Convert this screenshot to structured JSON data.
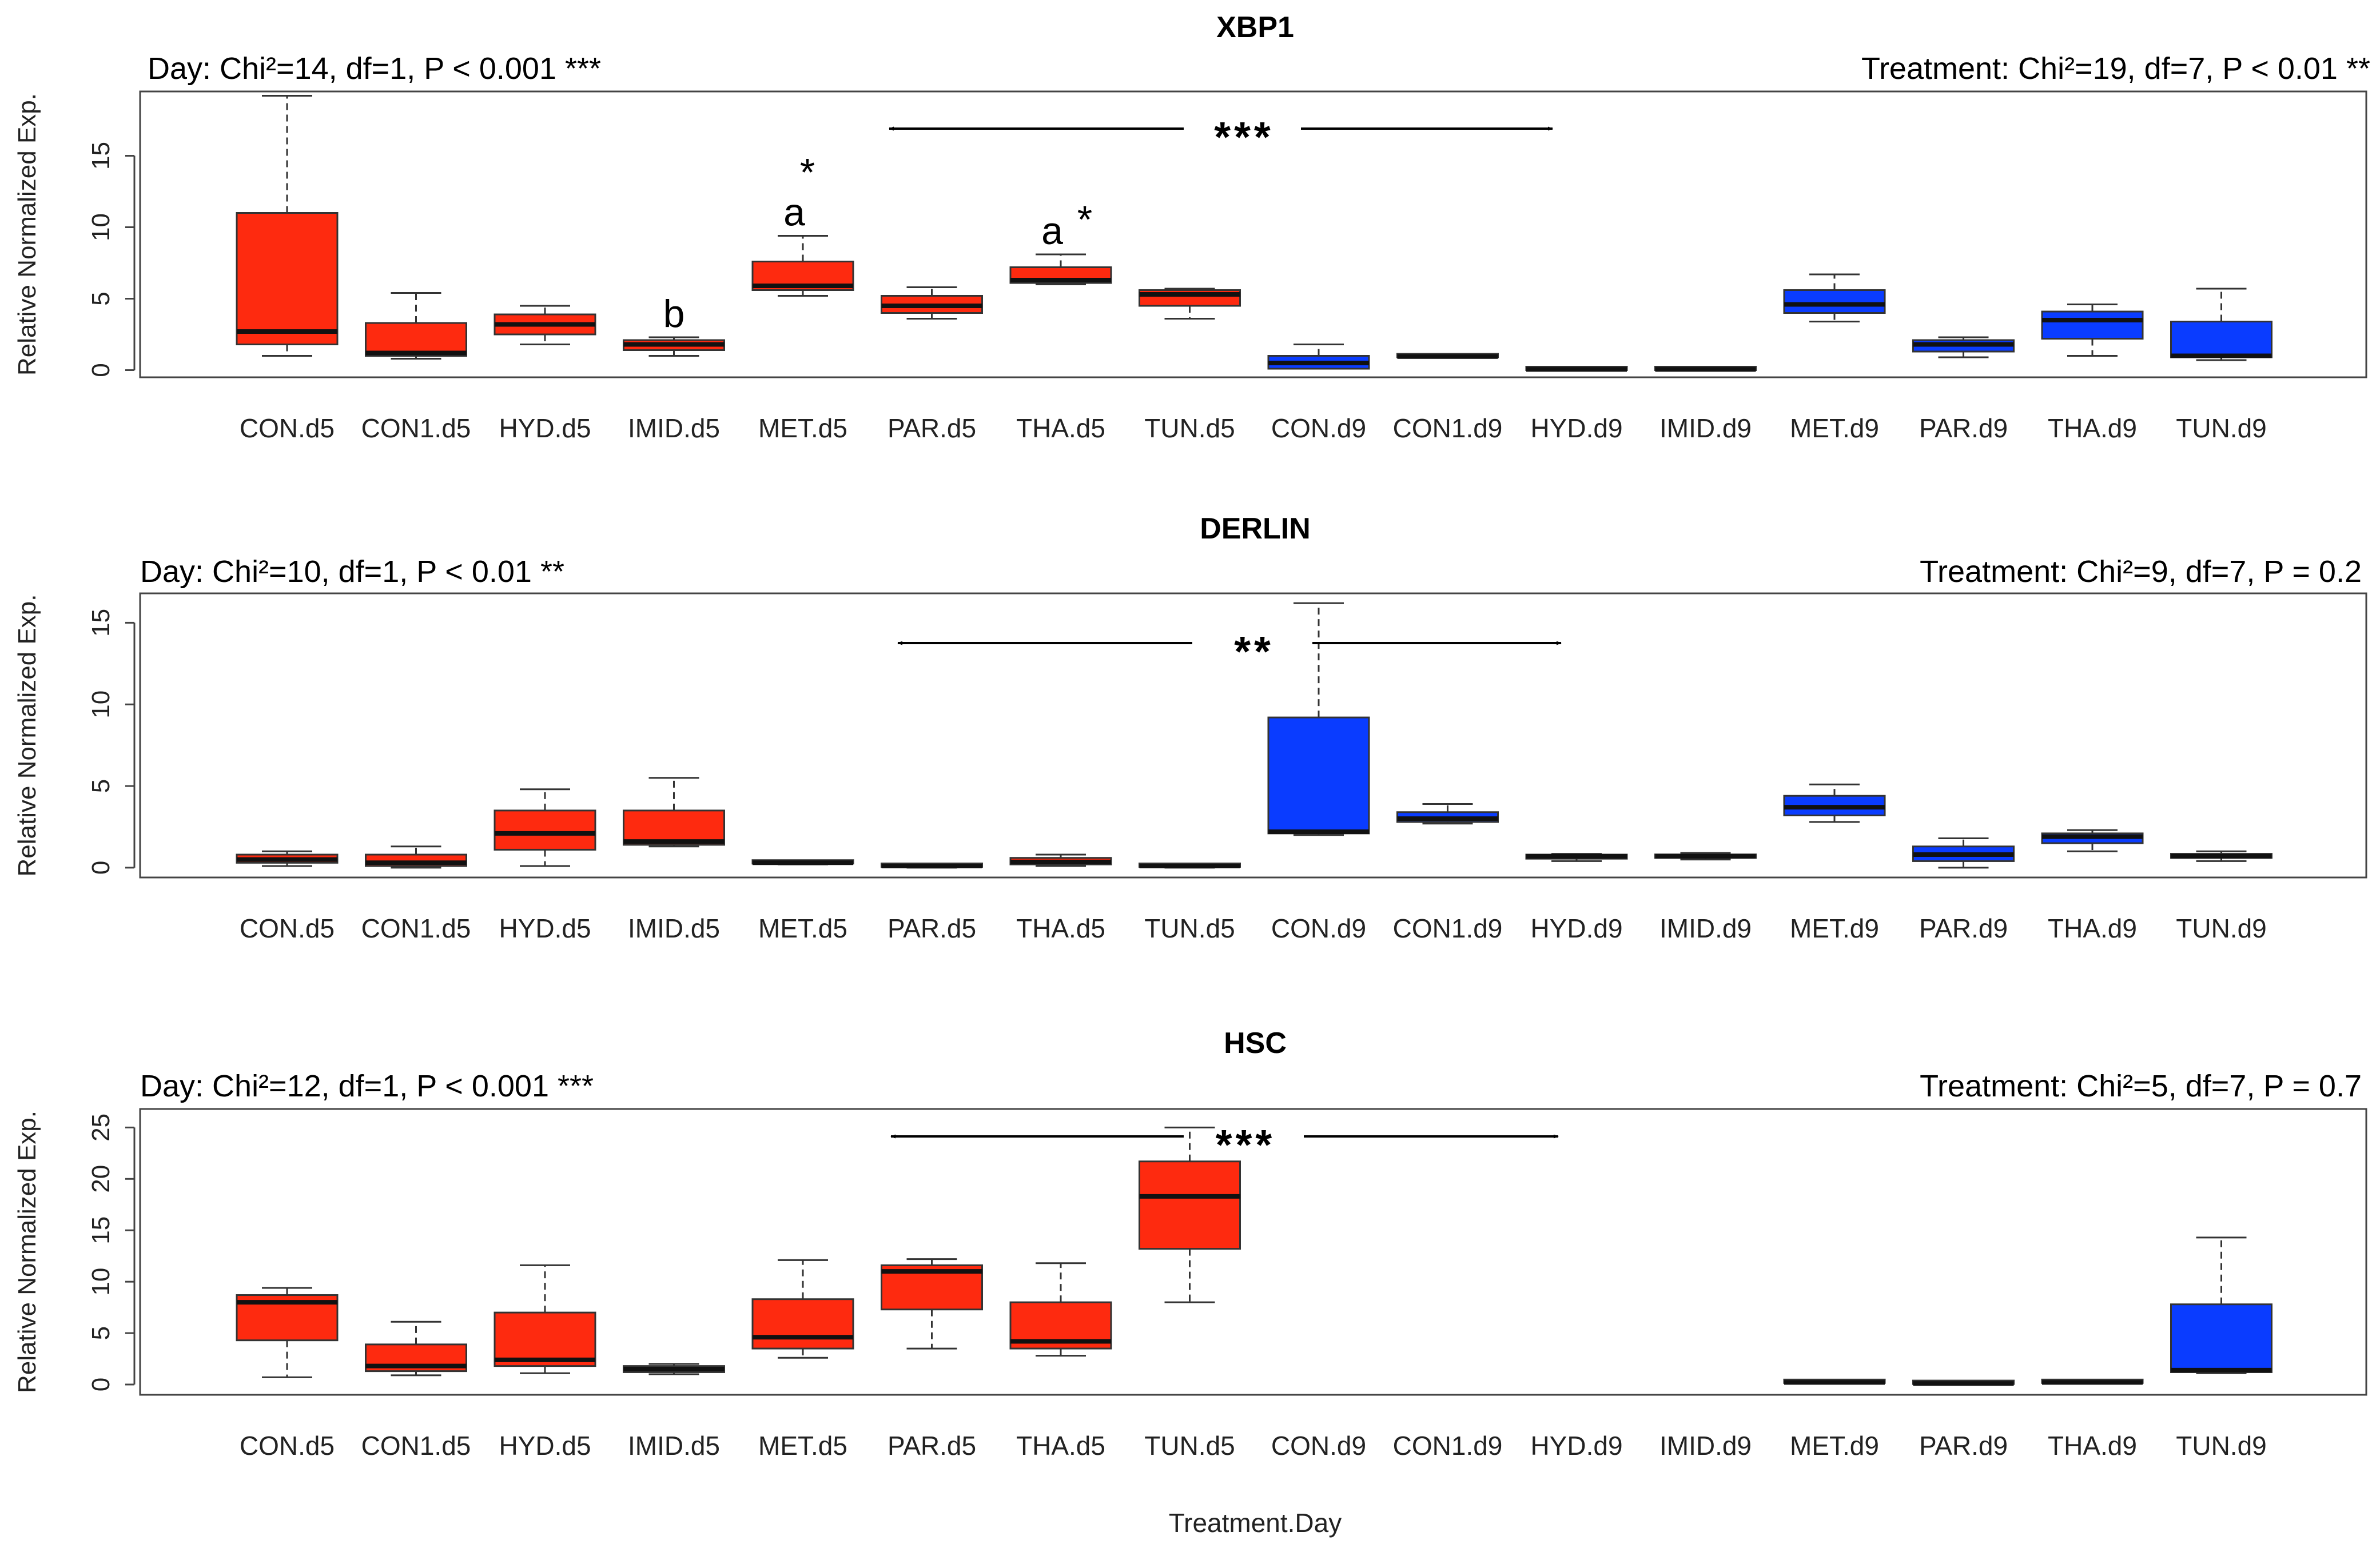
{
  "chart_data": [
    {
      "type": "box",
      "title": "XBP1",
      "stat_left": "Day: Chi²=14, df=1, P < 0.001 ***",
      "stat_right": "Treatment: Chi²=19, df=7, P < 0.01 **",
      "ylabel": "Relative Normalized Exp.",
      "xlabel": "",
      "ylim": [
        -0.5,
        19.5
      ],
      "yticks": [
        0,
        5,
        10,
        15
      ],
      "arrow_label": "***",
      "categories": [
        "CON.d5",
        "CON1.d5",
        "HYD.d5",
        "IMID.d5",
        "MET.d5",
        "PAR.d5",
        "THA.d5",
        "TUN.d5",
        "CON.d9",
        "CON1.d9",
        "HYD.d9",
        "IMID.d9",
        "MET.d9",
        "PAR.d9",
        "THA.d9",
        "TUN.d9"
      ],
      "boxes": [
        {
          "min": 1.0,
          "q1": 1.8,
          "median": 2.7,
          "q3": 11.0,
          "max": 19.2,
          "color": "red"
        },
        {
          "min": 0.8,
          "q1": 1.0,
          "median": 1.2,
          "q3": 3.3,
          "max": 5.4,
          "color": "red"
        },
        {
          "min": 1.8,
          "q1": 2.5,
          "median": 3.2,
          "q3": 3.9,
          "max": 4.5,
          "color": "red"
        },
        {
          "min": 1.0,
          "q1": 1.4,
          "median": 1.8,
          "q3": 2.1,
          "max": 2.3,
          "color": "red"
        },
        {
          "min": 5.2,
          "q1": 5.6,
          "median": 5.9,
          "q3": 7.6,
          "max": 9.4,
          "color": "red"
        },
        {
          "min": 3.6,
          "q1": 4.0,
          "median": 4.5,
          "q3": 5.2,
          "max": 5.8,
          "color": "red"
        },
        {
          "min": 6.0,
          "q1": 6.1,
          "median": 6.3,
          "q3": 7.2,
          "max": 8.1,
          "color": "red"
        },
        {
          "min": 3.6,
          "q1": 4.5,
          "median": 5.3,
          "q3": 5.6,
          "max": 5.7,
          "color": "red"
        },
        {
          "min": 0.1,
          "q1": 0.1,
          "median": 0.5,
          "q3": 1.0,
          "max": 1.8,
          "color": "blue"
        },
        {
          "min": 0.9,
          "q1": 0.9,
          "median": 0.95,
          "q3": 1.0,
          "max": 1.05,
          "color": "blue"
        },
        {
          "min": 0.0,
          "q1": 0.0,
          "median": 0.05,
          "q3": 0.1,
          "max": 0.1,
          "color": "blue"
        },
        {
          "min": 0.0,
          "q1": 0.0,
          "median": 0.05,
          "q3": 0.1,
          "max": 0.1,
          "color": "blue"
        },
        {
          "min": 3.4,
          "q1": 4.0,
          "median": 4.6,
          "q3": 5.6,
          "max": 6.7,
          "color": "blue"
        },
        {
          "min": 0.9,
          "q1": 1.3,
          "median": 1.8,
          "q3": 2.1,
          "max": 2.3,
          "color": "blue"
        },
        {
          "min": 1.0,
          "q1": 2.2,
          "median": 3.5,
          "q3": 4.1,
          "max": 4.6,
          "color": "blue"
        },
        {
          "min": 0.7,
          "q1": 0.9,
          "median": 1.0,
          "q3": 3.4,
          "max": 5.7,
          "color": "blue"
        }
      ],
      "annotations": [
        {
          "category": "IMID.d5",
          "letter": "b",
          "star": ""
        },
        {
          "category": "MET.d5",
          "letter": "a",
          "star": "*"
        },
        {
          "category": "THA.d5",
          "letter": "a",
          "star": "*"
        }
      ]
    },
    {
      "type": "box",
      "title": "DERLIN",
      "stat_left": "Day: Chi²=10, df=1, P < 0.01 **",
      "stat_right": "Treatment: Chi²=9, df=7, P = 0.2",
      "ylabel": "Relative Normalized Exp.",
      "xlabel": "",
      "ylim": [
        -0.6,
        16.8
      ],
      "yticks": [
        0,
        5,
        10,
        15
      ],
      "arrow_label": "**",
      "categories": [
        "CON.d5",
        "CON1.d5",
        "HYD.d5",
        "IMID.d5",
        "MET.d5",
        "PAR.d5",
        "THA.d5",
        "TUN.d5",
        "CON.d9",
        "CON1.d9",
        "HYD.d9",
        "IMID.d9",
        "MET.d9",
        "PAR.d9",
        "THA.d9",
        "TUN.d9"
      ],
      "boxes": [
        {
          "min": 0.1,
          "q1": 0.3,
          "median": 0.5,
          "q3": 0.8,
          "max": 1.0,
          "color": "red"
        },
        {
          "min": 0.0,
          "q1": 0.1,
          "median": 0.3,
          "q3": 0.8,
          "max": 1.3,
          "color": "red"
        },
        {
          "min": 0.1,
          "q1": 1.1,
          "median": 2.1,
          "q3": 3.5,
          "max": 4.8,
          "color": "red"
        },
        {
          "min": 1.3,
          "q1": 1.4,
          "median": 1.6,
          "q3": 3.5,
          "max": 5.5,
          "color": "red"
        },
        {
          "min": 0.2,
          "q1": 0.25,
          "median": 0.3,
          "q3": 0.35,
          "max": 0.4,
          "color": "red"
        },
        {
          "min": 0.0,
          "q1": 0.05,
          "median": 0.1,
          "q3": 0.2,
          "max": 0.25,
          "color": "red"
        },
        {
          "min": 0.1,
          "q1": 0.2,
          "median": 0.35,
          "q3": 0.6,
          "max": 0.8,
          "color": "red"
        },
        {
          "min": 0.0,
          "q1": 0.05,
          "median": 0.1,
          "q3": 0.15,
          "max": 0.2,
          "color": "red"
        },
        {
          "min": 2.0,
          "q1": 2.1,
          "median": 2.2,
          "q3": 9.2,
          "max": 16.2,
          "color": "blue"
        },
        {
          "min": 2.7,
          "q1": 2.8,
          "median": 3.0,
          "q3": 3.4,
          "max": 3.9,
          "color": "blue"
        },
        {
          "min": 0.4,
          "q1": 0.55,
          "median": 0.7,
          "q3": 0.8,
          "max": 0.85,
          "color": "blue"
        },
        {
          "min": 0.5,
          "q1": 0.6,
          "median": 0.7,
          "q3": 0.8,
          "max": 0.9,
          "color": "blue"
        },
        {
          "min": 2.8,
          "q1": 3.2,
          "median": 3.7,
          "q3": 4.4,
          "max": 5.1,
          "color": "blue"
        },
        {
          "min": 0.0,
          "q1": 0.4,
          "median": 0.8,
          "q3": 1.3,
          "max": 1.8,
          "color": "blue"
        },
        {
          "min": 1.0,
          "q1": 1.5,
          "median": 1.9,
          "q3": 2.1,
          "max": 2.3,
          "color": "blue"
        },
        {
          "min": 0.4,
          "q1": 0.6,
          "median": 0.7,
          "q3": 0.85,
          "max": 1.0,
          "color": "blue"
        }
      ],
      "annotations": []
    },
    {
      "type": "box",
      "title": "HSC",
      "stat_left": "Day: Chi²=12, df=1, P < 0.001 ***",
      "stat_right": "Treatment: Chi²=5, df=7, P = 0.7",
      "ylabel": "Relative Normalized Exp.",
      "xlabel": "Treatment.Day",
      "ylim": [
        -1,
        26.8
      ],
      "yticks": [
        0,
        5,
        10,
        15,
        20,
        25
      ],
      "arrow_label": "***",
      "categories": [
        "CON.d5",
        "CON1.d5",
        "HYD.d5",
        "IMID.d5",
        "MET.d5",
        "PAR.d5",
        "THA.d5",
        "TUN.d5",
        "CON.d9",
        "CON1.d9",
        "HYD.d9",
        "IMID.d9",
        "MET.d9",
        "PAR.d9",
        "THA.d9",
        "TUN.d9"
      ],
      "boxes": [
        {
          "min": 0.7,
          "q1": 4.3,
          "median": 8.0,
          "q3": 8.7,
          "max": 9.4,
          "color": "red"
        },
        {
          "min": 0.9,
          "q1": 1.3,
          "median": 1.8,
          "q3": 3.9,
          "max": 6.1,
          "color": "red"
        },
        {
          "min": 1.1,
          "q1": 1.8,
          "median": 2.4,
          "q3": 7.0,
          "max": 11.6,
          "color": "red"
        },
        {
          "min": 1.0,
          "q1": 1.2,
          "median": 1.5,
          "q3": 1.8,
          "max": 2.0,
          "color": "red"
        },
        {
          "min": 2.6,
          "q1": 3.5,
          "median": 4.6,
          "q3": 8.3,
          "max": 12.1,
          "color": "red"
        },
        {
          "min": 3.5,
          "q1": 7.3,
          "median": 11.0,
          "q3": 11.6,
          "max": 12.2,
          "color": "red"
        },
        {
          "min": 2.8,
          "q1": 3.5,
          "median": 4.2,
          "q3": 8.0,
          "max": 11.8,
          "color": "red"
        },
        {
          "min": 8.0,
          "q1": 13.2,
          "median": 18.3,
          "q3": 21.7,
          "max": 25.0,
          "color": "red"
        },
        {
          "empty": true
        },
        {
          "empty": true
        },
        {
          "empty": true
        },
        {
          "empty": true
        },
        {
          "min": 0.1,
          "q1": 0.15,
          "median": 0.2,
          "q3": 0.25,
          "max": 0.3,
          "color": "blue"
        },
        {
          "min": 0.0,
          "q1": 0.05,
          "median": 0.1,
          "q3": 0.15,
          "max": 0.2,
          "color": "blue"
        },
        {
          "min": 0.1,
          "q1": 0.15,
          "median": 0.2,
          "q3": 0.25,
          "max": 0.3,
          "color": "blue"
        },
        {
          "min": 1.1,
          "q1": 1.2,
          "median": 1.4,
          "q3": 7.8,
          "max": 14.3,
          "color": "blue"
        }
      ],
      "annotations": []
    }
  ],
  "colors": {
    "red": "#fe2a0f",
    "blue": "#0a3cff",
    "frame": "#444444"
  }
}
